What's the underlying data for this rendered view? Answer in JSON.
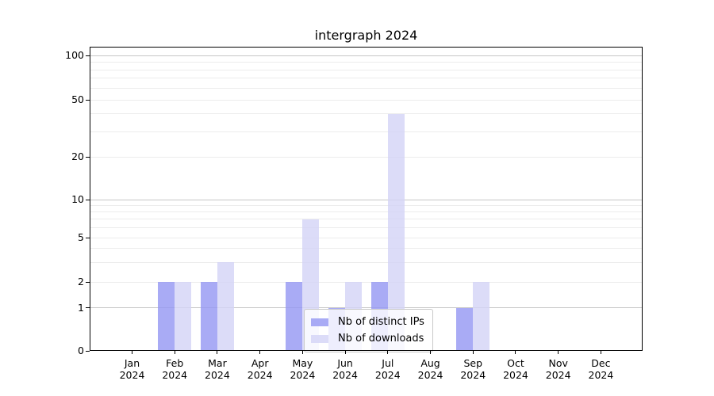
{
  "title": "intergraph 2024",
  "chart_data": {
    "type": "bar",
    "title": "intergraph 2024",
    "categories": [
      "Jan",
      "Feb",
      "Mar",
      "Apr",
      "May",
      "Jun",
      "Jul",
      "Aug",
      "Sep",
      "Oct",
      "Nov",
      "Dec"
    ],
    "x_tick_year": "2024",
    "series": [
      {
        "name": "Nb of distinct IPs",
        "color": "#a9abf5",
        "fill_rgba": "rgba(148,150,243,0.8)",
        "values": [
          0,
          2,
          2,
          0,
          2,
          1,
          2,
          0,
          1,
          0,
          0,
          0
        ]
      },
      {
        "name": "Nb of downloads",
        "color": "#dcdcf8",
        "fill_rgba": "rgba(211,211,246,0.8)",
        "values": [
          0,
          2,
          3,
          0,
          7,
          2,
          40,
          0,
          2,
          0,
          0,
          0
        ]
      }
    ],
    "y_axis": {
      "scale": "symlog",
      "tick_labels": [
        "0",
        "1",
        "2",
        "5",
        "10",
        "20",
        "50",
        "100"
      ],
      "tick_values": [
        0,
        1,
        2,
        5,
        10,
        20,
        50,
        100
      ],
      "ylim": [
        0,
        115
      ],
      "grid": true
    },
    "legend": {
      "position": "lower-center",
      "entries": [
        "Nb of distinct IPs",
        "Nb of downloads"
      ]
    }
  }
}
